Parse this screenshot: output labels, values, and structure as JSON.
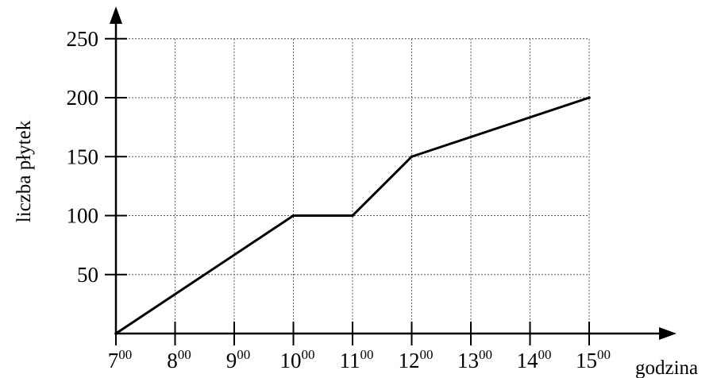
{
  "chart_data": {
    "type": "line",
    "title": "",
    "xlabel": "godzina",
    "ylabel": "liczba płytek",
    "x_ticks": [
      {
        "hour": "7",
        "minutes": "00"
      },
      {
        "hour": "8",
        "minutes": "00"
      },
      {
        "hour": "9",
        "minutes": "00"
      },
      {
        "hour": "10",
        "minutes": "00"
      },
      {
        "hour": "11",
        "minutes": "00"
      },
      {
        "hour": "12",
        "minutes": "00"
      },
      {
        "hour": "13",
        "minutes": "00"
      },
      {
        "hour": "14",
        "minutes": "00"
      },
      {
        "hour": "15",
        "minutes": "00"
      }
    ],
    "y_ticks": [
      50,
      100,
      150,
      200,
      250
    ],
    "xlim": [
      7,
      15
    ],
    "ylim": [
      0,
      250
    ],
    "grid": true,
    "series": [
      {
        "x": [
          7,
          10,
          11,
          12,
          15
        ],
        "y": [
          0,
          100,
          100,
          150,
          200
        ]
      }
    ]
  }
}
